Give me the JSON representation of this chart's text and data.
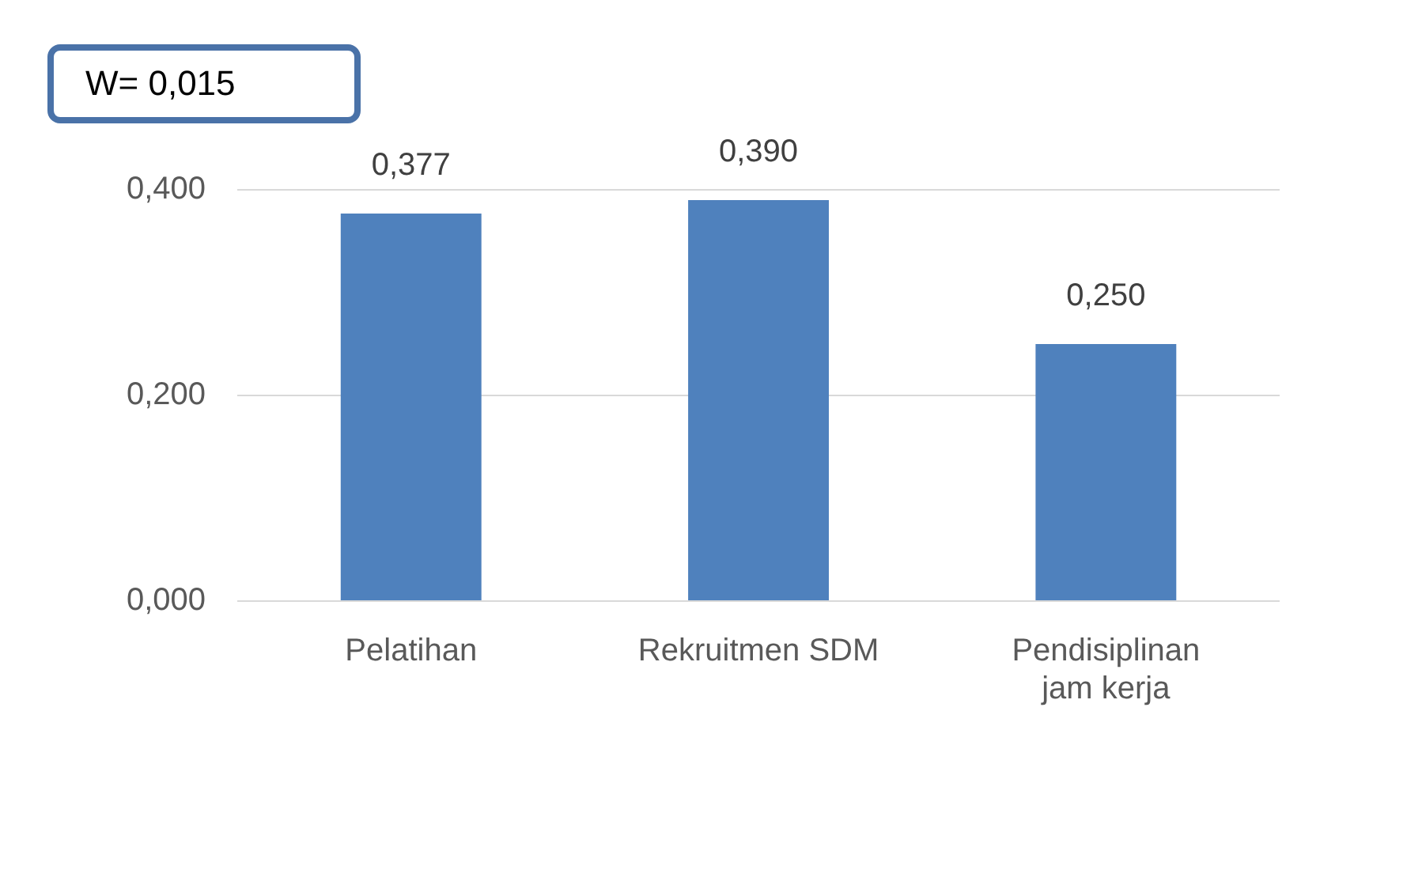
{
  "chart_data": {
    "type": "bar",
    "categories": [
      "Pelatihan",
      "Rekruitmen SDM",
      "Pendisiplinan jam kerja"
    ],
    "values": [
      0.377,
      0.39,
      0.25
    ],
    "value_labels": [
      "0,377",
      "0,390",
      "0,250"
    ],
    "color": "#4f81bd",
    "ylim": [
      0,
      0.4
    ],
    "yticks": [
      {
        "value": 0,
        "label": "0,000"
      },
      {
        "value": 0.2,
        "label": "0,200"
      },
      {
        "value": 0.4,
        "label": "0,400"
      }
    ],
    "grid": "y",
    "legend": false,
    "annotations": [
      "W= 0,015"
    ]
  }
}
